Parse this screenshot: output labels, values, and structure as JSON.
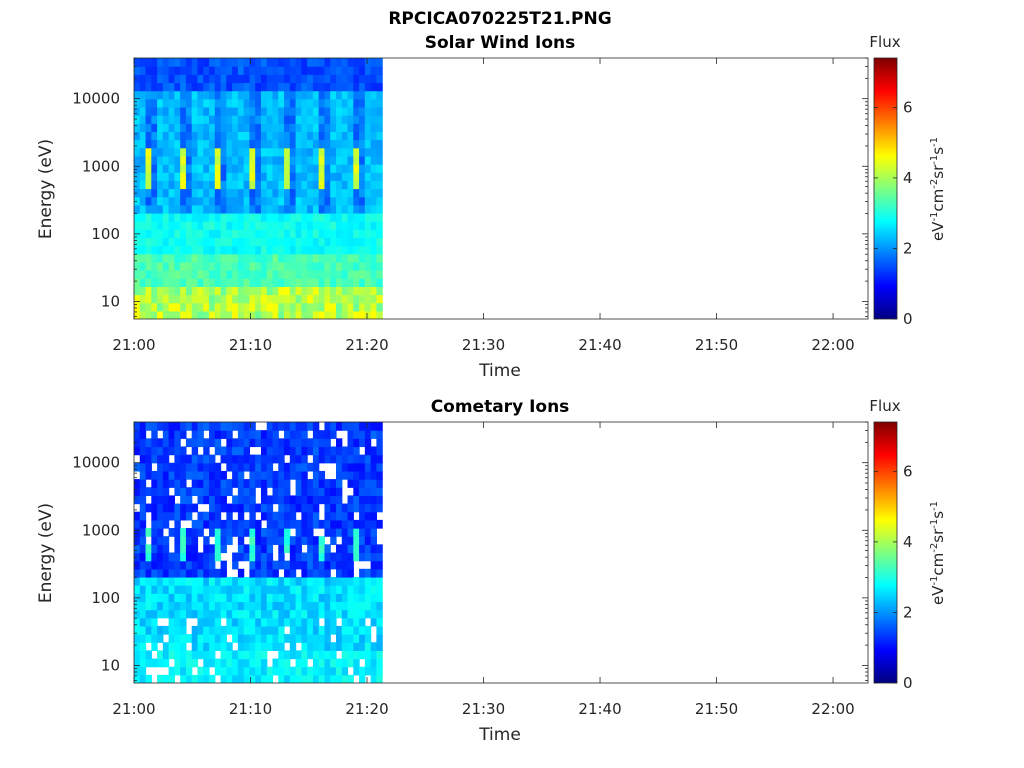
{
  "figure": {
    "title": "RPCICA070225T21.PNG"
  },
  "colormap": {
    "name": "jet",
    "stops": [
      "#00007f",
      "#0000ff",
      "#007fff",
      "#00ffff",
      "#7fff7f",
      "#ffff00",
      "#ff7f00",
      "#ff0000",
      "#7f0000"
    ]
  },
  "chart_data": [
    {
      "type": "heatmap",
      "title": "Solar Wind Ions",
      "xlabel": "Time",
      "ylabel": "Energy (eV)",
      "x_ticks": [
        "21:00",
        "21:10",
        "21:20",
        "21:30",
        "21:40",
        "21:50",
        "22:00"
      ],
      "y_ticks": [
        "10",
        "100",
        "1000",
        "10000"
      ],
      "y_tick_values": [
        10,
        100,
        1000,
        10000
      ],
      "y_scale": "log",
      "x_range": [
        "21:00",
        "22:03"
      ],
      "y_range": [
        5.5,
        40000
      ],
      "data_end_time": "21:21",
      "colorbar": {
        "title": "Flux",
        "label": "eV-1cm-2sr-1s-1",
        "ticks": [
          "0",
          "2",
          "4",
          "6"
        ],
        "tick_values": [
          0,
          2,
          4,
          6
        ],
        "range": [
          0,
          7.4
        ]
      },
      "description_values": {
        "low_energy_band_flux": 4.3,
        "peak_flux_near_1000eV": 4.6,
        "background_flux": 2.0
      }
    },
    {
      "type": "heatmap",
      "title": "Cometary Ions",
      "xlabel": "Time",
      "ylabel": "Energy (eV)",
      "x_ticks": [
        "21:00",
        "21:10",
        "21:20",
        "21:30",
        "21:40",
        "21:50",
        "22:00"
      ],
      "y_ticks": [
        "10",
        "100",
        "1000",
        "10000"
      ],
      "y_tick_values": [
        10,
        100,
        1000,
        10000
      ],
      "y_scale": "log",
      "x_range": [
        "21:00",
        "22:03"
      ],
      "y_range": [
        5.5,
        40000
      ],
      "data_end_time": "21:21",
      "colorbar": {
        "title": "Flux",
        "label": "eV-1cm-2sr-1s-1",
        "ticks": [
          "0",
          "2",
          "4",
          "6"
        ],
        "tick_values": [
          0,
          2,
          4,
          6
        ],
        "range": [
          0,
          7.4
        ]
      },
      "description_values": {
        "low_energy_band_flux": 2.6,
        "peak_flux_near_1000eV": 3.3,
        "background_flux": 1.0
      }
    }
  ]
}
